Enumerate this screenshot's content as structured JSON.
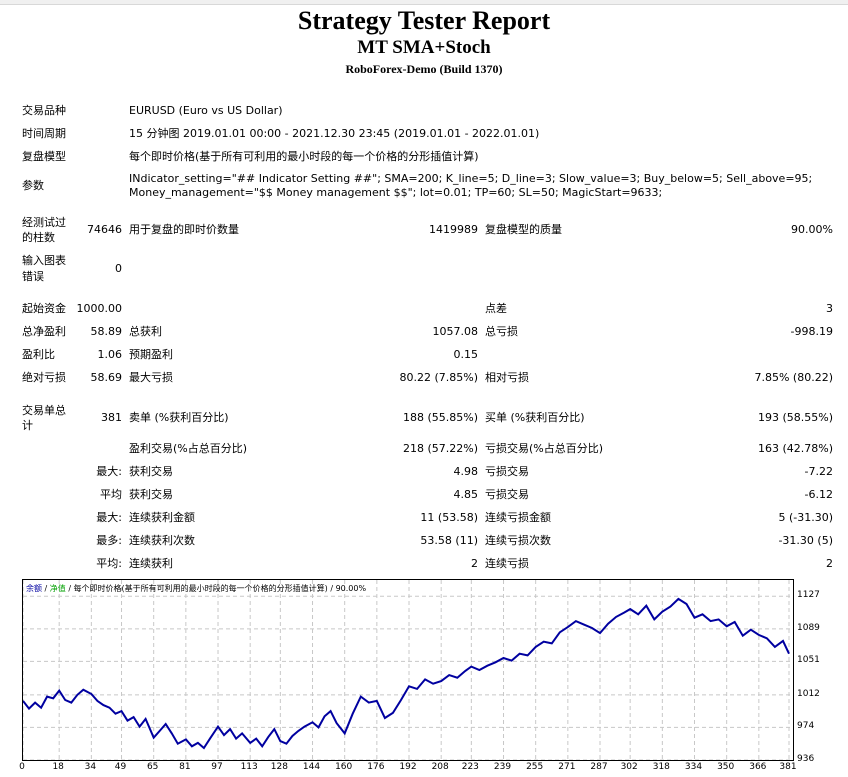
{
  "header": {
    "title": "Strategy Tester Report",
    "strategy": "MT SMA+Stoch",
    "server": "RoboForex-Demo (Build 1370)"
  },
  "info": {
    "symbol_label": "交易品种",
    "symbol_value": "EURUSD (Euro vs US Dollar)",
    "period_label": "时间周期",
    "period_value": "15 分钟图 2019.01.01 00:00 - 2021.12.30 23:45 (2019.01.01 - 2022.01.01)",
    "model_label": "复盘模型",
    "model_value": "每个即时价格(基于所有可利用的最小时段的每一个价格的分形插值计算)",
    "params_label": "参数",
    "params_line1": "INdicator_setting=\"## Indicator Setting ##\"; SMA=200; K_line=5; D_line=3; Slow_value=3; Buy_below=5; Sell_above=95;",
    "params_line2": "Money_management=\"$$ Money management $$\"; lot=0.01; TP=60; SL=50; MagicStart=9633;"
  },
  "stats": {
    "bars_label_1": "经测试过",
    "bars_label_2": "的柱数",
    "bars_value": "74646",
    "ticks_label": "用于复盘的即时价数量",
    "ticks_value": "1419989",
    "quality_label": "复盘模型的质量",
    "quality_value": "90.00%",
    "errors_label_1": "输入图表",
    "errors_label_2": "错误",
    "errors_value": "0",
    "deposit_label": "起始资金",
    "deposit_value": "1000.00",
    "spread_label": "点差",
    "spread_value": "3",
    "net_profit_label": "总净盈利",
    "net_profit_value": "58.89",
    "gross_profit_label": "总获利",
    "gross_profit_value": "1057.08",
    "gross_loss_label": "总亏损",
    "gross_loss_value": "-998.19",
    "profit_factor_label": "盈利比",
    "profit_factor_value": "1.06",
    "expected_payoff_label": "预期盈利",
    "expected_payoff_value": "0.15",
    "abs_dd_label": "绝对亏损",
    "abs_dd_value": "58.69",
    "max_dd_label": "最大亏损",
    "max_dd_value": "80.22 (7.85%)",
    "rel_dd_label": "相对亏损",
    "rel_dd_value": "7.85% (80.22)",
    "total_trades_label_1": "交易单总",
    "total_trades_label_2": "计",
    "total_trades_value": "381",
    "short_label": "卖单 (%获利百分比)",
    "short_value": "188 (55.85%)",
    "long_label": "买单 (%获利百分比)",
    "long_value": "193 (58.55%)",
    "profit_trades_label": "盈利交易(%占总百分比)",
    "profit_trades_value": "218 (57.22%)",
    "loss_trades_label": "亏损交易(%占总百分比)",
    "loss_trades_value": "163 (42.78%)",
    "largest_prefix": "最大:",
    "largest_profit_label": "获利交易",
    "largest_profit_value": "4.98",
    "largest_loss_label": "亏损交易",
    "largest_loss_value": "-7.22",
    "average_prefix": "平均",
    "avg_profit_label": "获利交易",
    "avg_profit_value": "4.85",
    "avg_loss_label": "亏损交易",
    "avg_loss_value": "-6.12",
    "max_consec_prefix": "最大:",
    "max_consec_wins_label": "连续获利金额",
    "max_consec_wins_value": "11 (53.58)",
    "max_consec_losses_label": "连续亏损金额",
    "max_consec_losses_value": "5 (-31.30)",
    "most_prefix": "最多:",
    "max_consec_profit_label": "连续获利次数",
    "max_consec_profit_value": "53.58 (11)",
    "max_consec_loss_label": "连续亏损次数",
    "max_consec_loss_value": "-31.30 (5)",
    "avg_consec_prefix": "平均:",
    "avg_consec_wins_label": "连续获利",
    "avg_consec_wins_value": "2",
    "avg_consec_losses_label": "连续亏损",
    "avg_consec_losses_value": "2"
  },
  "chart_legend": {
    "balance": "余额",
    "sep1": " / ",
    "equity": "净值",
    "rest": " / 每个即时价格(基于所有可利用的最小时段的每一个价格的分形插值计算) / 90.00%"
  },
  "colors": {
    "balance_line": "#0000a0",
    "equity_line": "#00a000",
    "grid": "#c8c8c8"
  },
  "chart_data": {
    "type": "line",
    "title": "余额 / 净值 / 每个即时价格(基于所有可利用的最小时段的每一个价格的分形插值计算) / 90.00%",
    "xlabel": "",
    "ylabel": "",
    "xlim": [
      0,
      381
    ],
    "ylim": [
      936,
      1146
    ],
    "x_ticks": [
      0,
      18,
      34,
      49,
      65,
      81,
      97,
      113,
      128,
      144,
      160,
      176,
      192,
      208,
      223,
      239,
      255,
      271,
      287,
      302,
      318,
      334,
      350,
      366,
      381
    ],
    "y_ticks": [
      936,
      974,
      1012,
      1051,
      1089,
      1127
    ],
    "grid": true,
    "series": [
      {
        "name": "余额",
        "x": [
          0,
          3,
          6,
          9,
          12,
          15,
          18,
          21,
          24,
          27,
          30,
          34,
          37,
          40,
          43,
          46,
          49,
          52,
          55,
          58,
          61,
          65,
          68,
          71,
          74,
          77,
          81,
          84,
          87,
          90,
          93,
          97,
          100,
          103,
          106,
          109,
          113,
          116,
          119,
          122,
          125,
          128,
          131,
          134,
          137,
          140,
          144,
          147,
          150,
          153,
          156,
          160,
          164,
          168,
          172,
          176,
          180,
          184,
          188,
          192,
          196,
          200,
          204,
          208,
          212,
          216,
          220,
          223,
          227,
          231,
          235,
          239,
          243,
          247,
          251,
          255,
          259,
          263,
          267,
          271,
          275,
          279,
          283,
          287,
          291,
          295,
          299,
          302,
          306,
          310,
          314,
          318,
          322,
          326,
          330,
          334,
          338,
          342,
          346,
          350,
          354,
          358,
          362,
          366,
          370,
          374,
          378,
          381
        ],
        "values": [
          1005,
          996,
          1003,
          997,
          1010,
          1008,
          1017,
          1006,
          1003,
          1012,
          1018,
          1013,
          1005,
          1000,
          997,
          990,
          993,
          982,
          986,
          975,
          984,
          962,
          970,
          978,
          967,
          955,
          960,
          952,
          956,
          950,
          961,
          975,
          965,
          972,
          961,
          967,
          956,
          961,
          952,
          963,
          972,
          958,
          955,
          964,
          970,
          975,
          980,
          974,
          987,
          993,
          979,
          967,
          990,
          1010,
          1003,
          1005,
          985,
          991,
          1006,
          1022,
          1019,
          1030,
          1025,
          1028,
          1035,
          1032,
          1040,
          1045,
          1041,
          1046,
          1050,
          1055,
          1052,
          1060,
          1058,
          1068,
          1074,
          1072,
          1085,
          1091,
          1098,
          1094,
          1090,
          1084,
          1095,
          1103,
          1108,
          1112,
          1106,
          1116,
          1100,
          1109,
          1115,
          1124,
          1118,
          1102,
          1106,
          1098,
          1100,
          1092,
          1097,
          1081,
          1088,
          1082,
          1078,
          1068,
          1075,
          1060
        ]
      }
    ]
  }
}
